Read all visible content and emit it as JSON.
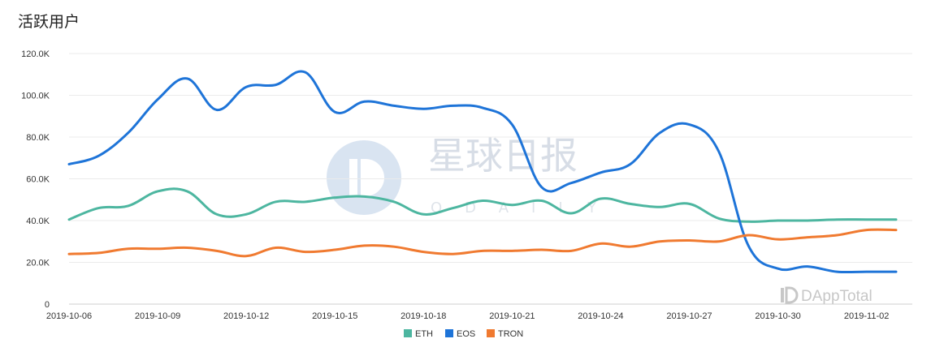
{
  "page": {
    "title": "活跃用户",
    "watermark_text": "星球日报",
    "watermark_sub": "ODAILY",
    "brand_logo": "DAppTotal"
  },
  "chart_data": {
    "type": "line",
    "title": "活跃用户",
    "xlabel": "",
    "ylabel": "",
    "ylim": [
      0,
      120000
    ],
    "yticks": [
      "0",
      "20.0K",
      "40.0K",
      "60.0K",
      "80.0K",
      "100.0K",
      "120.0K"
    ],
    "grid": true,
    "legend_position": "bottom-center",
    "x": [
      "2019-10-06",
      "2019-10-07",
      "2019-10-08",
      "2019-10-09",
      "2019-10-10",
      "2019-10-11",
      "2019-10-12",
      "2019-10-13",
      "2019-10-14",
      "2019-10-15",
      "2019-10-16",
      "2019-10-17",
      "2019-10-18",
      "2019-10-19",
      "2019-10-20",
      "2019-10-21",
      "2019-10-22",
      "2019-10-23",
      "2019-10-24",
      "2019-10-25",
      "2019-10-26",
      "2019-10-27",
      "2019-10-28",
      "2019-10-29",
      "2019-10-30",
      "2019-10-31",
      "2019-11-01",
      "2019-11-02",
      "2019-11-03"
    ],
    "xtick_labels": [
      "2019-10-06",
      "2019-10-09",
      "2019-10-12",
      "2019-10-15",
      "2019-10-18",
      "2019-10-21",
      "2019-10-24",
      "2019-10-27",
      "2019-10-30",
      "2019-11-02"
    ],
    "series": [
      {
        "name": "ETH",
        "color": "#4db6a0",
        "values": [
          40500,
          46000,
          47000,
          54000,
          54000,
          43000,
          43000,
          49000,
          49000,
          51000,
          51500,
          49000,
          43000,
          46000,
          49500,
          47500,
          49500,
          43500,
          50500,
          48000,
          46500,
          48000,
          41000,
          39500,
          40000,
          40000,
          40500,
          40500,
          40500
        ]
      },
      {
        "name": "EOS",
        "color": "#1e74d8",
        "values": [
          67000,
          71000,
          82000,
          98000,
          108000,
          93000,
          104000,
          105000,
          111000,
          92000,
          97000,
          95000,
          93500,
          95000,
          94000,
          86000,
          56000,
          58000,
          63000,
          67000,
          82000,
          86000,
          73000,
          28000,
          17000,
          18000,
          15500,
          15500,
          15500
        ]
      },
      {
        "name": "TRON",
        "color": "#f07a30",
        "values": [
          24000,
          24500,
          26500,
          26500,
          27000,
          25500,
          23000,
          27000,
          25000,
          26000,
          28000,
          27500,
          25000,
          24000,
          25500,
          25500,
          26000,
          25500,
          29000,
          27500,
          30000,
          30500,
          30000,
          33000,
          31000,
          32000,
          33000,
          35500,
          35500
        ]
      }
    ]
  }
}
